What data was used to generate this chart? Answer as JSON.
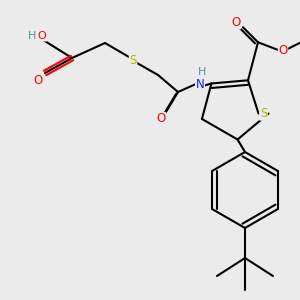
{
  "background_color": "#ebebeb",
  "figsize": [
    3.0,
    3.0
  ],
  "dpi": 100,
  "colors": {
    "C": "#000000",
    "H": "#4a9a9a",
    "O": "#ff0000",
    "N": "#1a1aff",
    "S": "#b8b800"
  },
  "lw": 1.5
}
